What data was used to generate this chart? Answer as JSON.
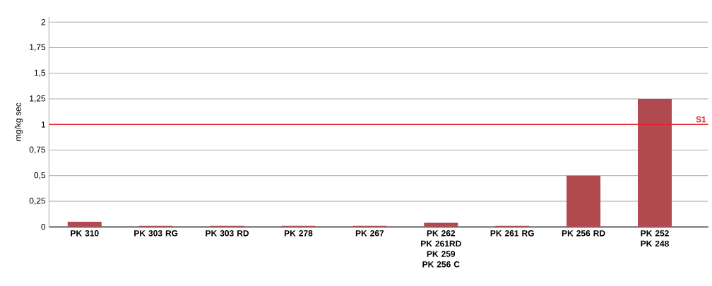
{
  "chart_data": {
    "type": "bar",
    "ylabel": "mg/kg sec",
    "categories": [
      "PK 310",
      "PK 303 RG",
      "PK 303 RD",
      "PK 278",
      "PK 267",
      "PK 262 PK 261RD PK 259 PK 256 C",
      "PK 261 RG",
      "PK 256 RD",
      "PK 252 PK 248"
    ],
    "values": [
      0.05,
      0.01,
      0.01,
      0.01,
      0.01,
      0.04,
      0.01,
      0.5,
      1.25
    ],
    "color": "#b04a4f",
    "ylim": [
      0,
      2.05
    ],
    "yticks": [
      0,
      {
        "value": 0.25,
        "label": "0,25"
      },
      {
        "value": 0.5,
        "label": "0,5"
      },
      {
        "value": 0.75,
        "label": "0,75"
      },
      1,
      {
        "value": 1.25,
        "label": "1,25"
      },
      {
        "value": 1.5,
        "label": "1,5"
      },
      {
        "value": 1.75,
        "label": "1,75"
      },
      2
    ],
    "grid": "y",
    "ref_lines": [
      {
        "axis": "y",
        "value": 1,
        "label": "S1",
        "color": "#e5202e"
      }
    ]
  }
}
